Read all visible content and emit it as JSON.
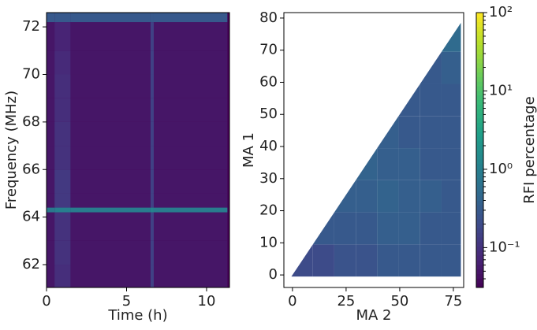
{
  "chart_data": [
    {
      "type": "heatmap",
      "xlabel": "Time (h)",
      "ylabel": "Frequency (MHz)",
      "colormap": "viridis",
      "xlim": [
        0,
        11.43
      ],
      "ylim": [
        61.04,
        72.6
      ],
      "xticks": [
        0,
        5,
        10
      ],
      "yticks": [
        62,
        64,
        66,
        68,
        70,
        72
      ],
      "x_edges": [
        0,
        0.5,
        1.5,
        6.5,
        6.7,
        11.3
      ],
      "y_edges": [
        61.04,
        62,
        63,
        64.2,
        64.4,
        65,
        66,
        67,
        68,
        69,
        70,
        71,
        72.2,
        72.6
      ],
      "values": [
        [
          0.05,
          0.09,
          0.05,
          0.15,
          0.05
        ],
        [
          0.05,
          0.1,
          0.05,
          0.15,
          0.05
        ],
        [
          0.05,
          0.1,
          0.05,
          0.15,
          0.05
        ],
        [
          0.8,
          1,
          0.9,
          1.2,
          0.9
        ],
        [
          0.05,
          0.12,
          0.05,
          0.15,
          0.05
        ],
        [
          0.05,
          0.12,
          0.05,
          0.15,
          0.05
        ],
        [
          0.05,
          0.1,
          0.05,
          0.15,
          0.05
        ],
        [
          0.05,
          0.1,
          0.05,
          0.15,
          0.05
        ],
        [
          0.05,
          0.09,
          0.05,
          0.15,
          0.05
        ],
        [
          0.05,
          0.09,
          0.05,
          0.15,
          0.05
        ],
        [
          0.05,
          0.08,
          0.05,
          0.15,
          0.05
        ],
        [
          0.05,
          0.07,
          0.05,
          0.15,
          0.05
        ],
        [
          0.3,
          0.3,
          0.3,
          0.3,
          0.3
        ]
      ]
    },
    {
      "type": "heatmap",
      "xlabel": "MA 2",
      "ylabel": "MA 1",
      "colormap": "viridis",
      "xlim": [
        -4,
        79.8
      ],
      "ylim": [
        -3.9,
        81.7
      ],
      "xticks": [
        0,
        25,
        50,
        75
      ],
      "yticks": [
        0,
        10,
        20,
        30,
        40,
        50,
        60,
        70,
        80
      ],
      "x_edges": [
        -0.5,
        9.5,
        19.5,
        29.5,
        39.5,
        49.5,
        59.5,
        69.5,
        78.5
      ],
      "y_edges": [
        -0.5,
        9.5,
        19.5,
        29.5,
        39.5,
        49.5,
        59.5,
        69.5,
        78.5
      ],
      "values": [
        [
          0.2,
          0.2,
          0.25,
          0.25,
          0.3,
          0.3,
          0.3,
          0.3
        ],
        [
          null,
          0.3,
          0.3,
          0.3,
          0.35,
          0.35,
          0.3,
          0.3
        ],
        [
          null,
          null,
          0.35,
          0.35,
          0.4,
          0.35,
          0.35,
          0.3
        ],
        [
          null,
          null,
          null,
          0.4,
          0.35,
          0.35,
          0.3,
          0.3
        ],
        [
          null,
          null,
          null,
          null,
          0.35,
          0.3,
          0.3,
          0.3
        ],
        [
          null,
          null,
          null,
          null,
          null,
          0.3,
          0.3,
          0.3
        ],
        [
          null,
          null,
          null,
          null,
          null,
          null,
          0.3,
          0.35
        ],
        [
          null,
          null,
          null,
          null,
          null,
          null,
          null,
          0.5
        ]
      ]
    },
    {
      "type": "colorbar",
      "label": "RFI percentage",
      "colormap": "viridis",
      "log_scale": true,
      "ylim": [
        0.031,
        100
      ],
      "yticks": [
        {
          "value": 0.1,
          "label": "10⁻¹"
        },
        {
          "value": 1,
          "label": "10⁰"
        },
        {
          "value": 10,
          "label": "10¹"
        },
        {
          "value": 100,
          "label": "10²"
        }
      ]
    }
  ]
}
